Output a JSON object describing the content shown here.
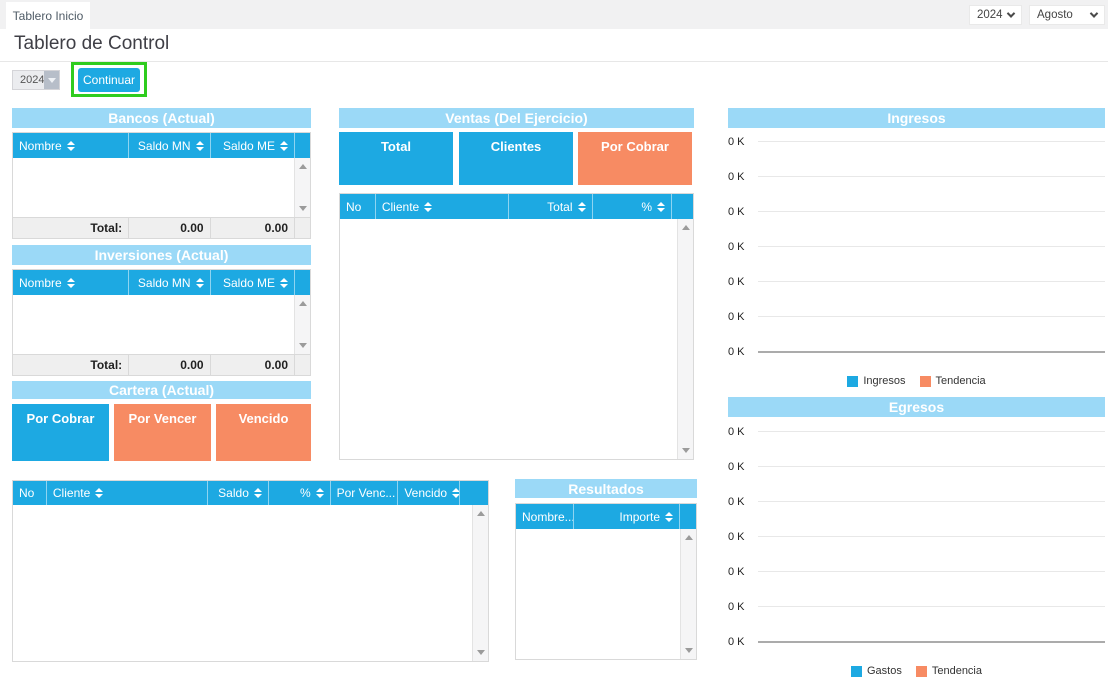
{
  "colors": {
    "accent_blue": "#1da9e2",
    "panel_light_blue": "#9bd9f7",
    "orange": "#f78b63",
    "highlight_green": "#2fcc1e"
  },
  "topbar": {
    "tab": "Tablero Inicio",
    "year_select": "2024",
    "month_select": "Agosto"
  },
  "page": {
    "title": "Tablero de Control"
  },
  "controls": {
    "year_dropdown": "2024",
    "continue_button": "Continuar"
  },
  "bancos": {
    "title": "Bancos (Actual)",
    "columns": [
      "Nombre",
      "Saldo MN",
      "Saldo ME"
    ],
    "total_label": "Total:",
    "total_mn": "0.00",
    "total_me": "0.00"
  },
  "inversiones": {
    "title": "Inversiones (Actual)",
    "columns": [
      "Nombre",
      "Saldo MN",
      "Saldo ME"
    ],
    "total_label": "Total:",
    "total_mn": "0.00",
    "total_me": "0.00"
  },
  "cartera": {
    "title": "Cartera (Actual)",
    "boxes": [
      "Por Cobrar",
      "Por Vencer",
      "Vencido"
    ],
    "table_columns": [
      "No",
      "Cliente",
      "Saldo",
      "%",
      "Por Venc...",
      "Vencido"
    ]
  },
  "ventas": {
    "title": "Ventas (Del Ejercicio)",
    "boxes": [
      "Total",
      "Clientes",
      "Por Cobrar"
    ],
    "table_columns": [
      "No",
      "Cliente",
      "Total",
      "%"
    ]
  },
  "resultados": {
    "title": "Resultados",
    "columns": [
      "Nombre...",
      "Importe"
    ]
  },
  "charts": [
    {
      "title": "Ingresos",
      "type": "line",
      "ticks": [
        "0 K",
        "0 K",
        "0 K",
        "0 K",
        "0 K",
        "0 K",
        "0 K"
      ],
      "series": [
        {
          "name": "Ingresos",
          "color": "#1da9e2",
          "values": []
        },
        {
          "name": "Tendencia",
          "color": "#f78b63",
          "values": []
        }
      ],
      "legend": [
        {
          "label": "Ingresos",
          "color": "#1da9e2"
        },
        {
          "label": "Tendencia",
          "color": "#f78b63"
        }
      ]
    },
    {
      "title": "Egresos",
      "type": "line",
      "ticks": [
        "0 K",
        "0 K",
        "0 K",
        "0 K",
        "0 K",
        "0 K",
        "0 K"
      ],
      "series": [
        {
          "name": "Gastos",
          "color": "#1da9e2",
          "values": []
        },
        {
          "name": "Tendencia",
          "color": "#f78b63",
          "values": []
        }
      ],
      "legend": [
        {
          "label": "Gastos",
          "color": "#1da9e2"
        },
        {
          "label": "Tendencia",
          "color": "#f78b63"
        }
      ]
    }
  ]
}
